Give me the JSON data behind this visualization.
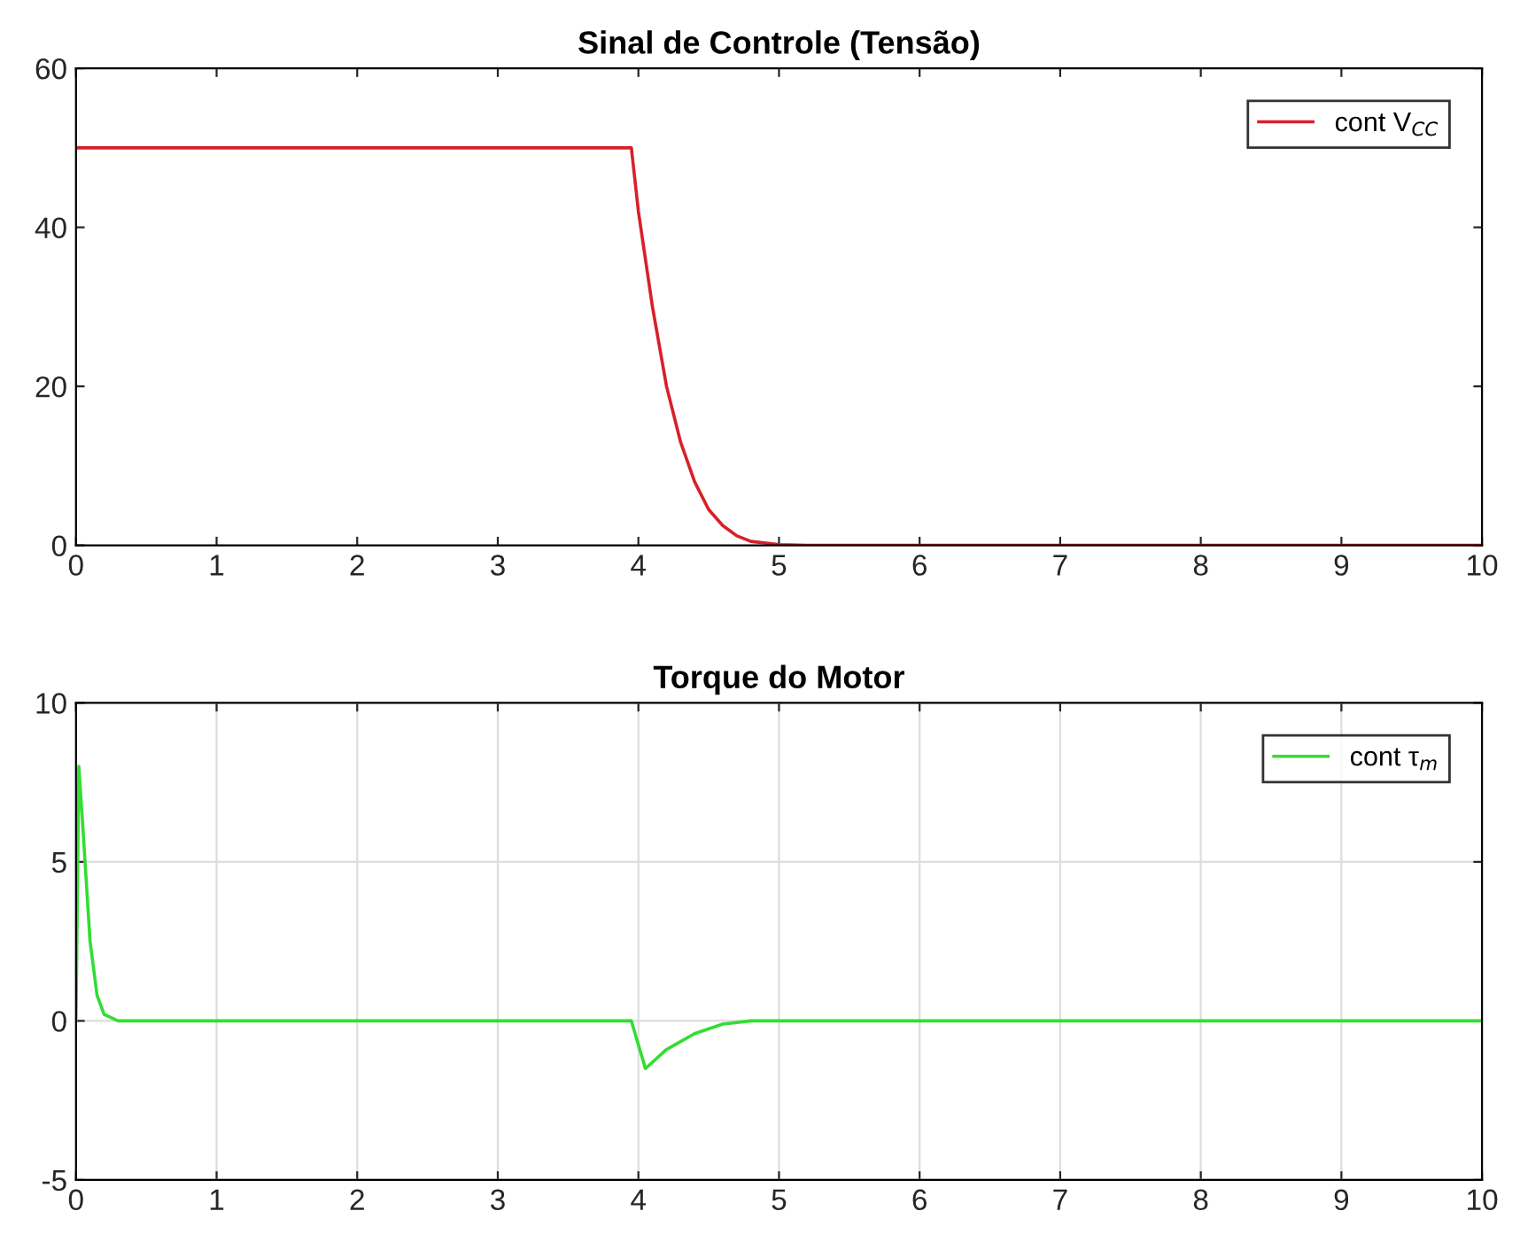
{
  "chart_data": [
    {
      "type": "line",
      "title": "Sinal de Controle (Tensão)",
      "xlim": [
        0,
        10
      ],
      "xticks": [
        0,
        1,
        2,
        3,
        4,
        5,
        6,
        7,
        8,
        9,
        10
      ],
      "ylim": [
        0,
        60
      ],
      "yticks": [
        0,
        20,
        40,
        60
      ],
      "grid": false,
      "legend": "top right",
      "series": [
        {
          "name": "cont V$_{CC}$",
          "color": "#d8202a",
          "x": [
            0,
            3.95,
            4.0,
            4.1,
            4.2,
            4.3,
            4.4,
            4.5,
            4.6,
            4.7,
            4.8,
            5.0,
            5.2,
            10
          ],
          "values": [
            50,
            50,
            42,
            30,
            20,
            13,
            8,
            4.5,
            2.5,
            1.2,
            0.5,
            0.1,
            0,
            0
          ]
        }
      ]
    },
    {
      "type": "line",
      "title": "Torque do Motor",
      "xlim": [
        0,
        10
      ],
      "xticks": [
        0,
        1,
        2,
        3,
        4,
        5,
        6,
        7,
        8,
        9,
        10
      ],
      "ylim": [
        -5,
        10
      ],
      "yticks": [
        -5,
        0,
        5,
        10
      ],
      "grid": true,
      "legend": "top right",
      "series": [
        {
          "name": "cont τ$_{m}$",
          "color": "#33dd33",
          "x": [
            0,
            0.02,
            0.05,
            0.1,
            0.15,
            0.2,
            0.3,
            3.95,
            4.05,
            4.2,
            4.4,
            4.6,
            4.8,
            10
          ],
          "values": [
            0,
            8,
            6,
            2.5,
            0.8,
            0.2,
            0,
            0,
            -1.5,
            -0.9,
            -0.4,
            -0.1,
            0,
            0
          ]
        }
      ]
    }
  ]
}
